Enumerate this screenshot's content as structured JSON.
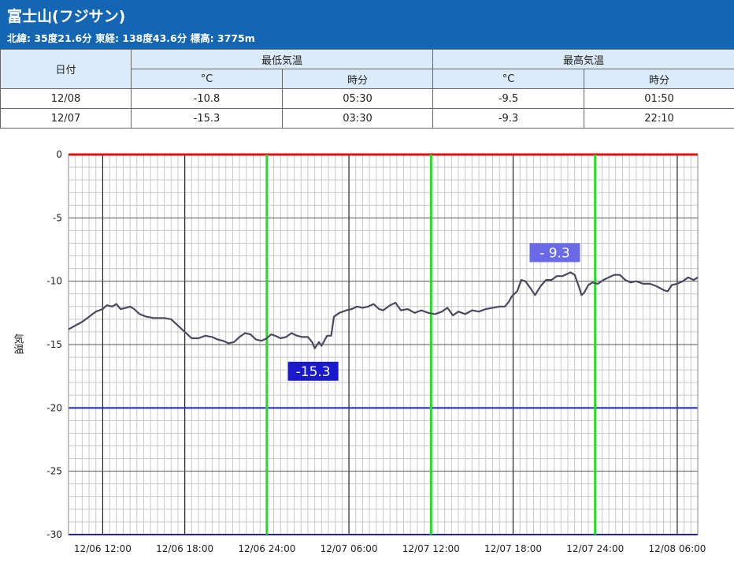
{
  "header": {
    "title": "富士山(フジサン)",
    "subtitle": "北緯: 35度21.6分 東経: 138度43.6分 標高: 3775m",
    "bg_color": "#1466b3"
  },
  "stats_table": {
    "date_header": "日付",
    "min_header": "最低気温",
    "max_header": "最高気温",
    "unit_label": "°C",
    "time_label": "時分",
    "rows": [
      {
        "date": "12/08",
        "min_c": "-10.8",
        "min_time": "05:30",
        "max_c": "-9.5",
        "max_time": "01:50"
      },
      {
        "date": "12/07",
        "min_c": "-15.3",
        "min_time": "03:30",
        "max_c": "-9.3",
        "max_time": "22:10"
      }
    ]
  },
  "chart_data": {
    "type": "line",
    "ylabel": "気温",
    "ylim": [
      -30,
      0
    ],
    "yticks": [
      "0",
      "-5",
      "-10",
      "-15",
      "-20",
      "-25",
      "-30"
    ],
    "ytick_values": [
      0,
      -5,
      -10,
      -15,
      -20,
      -25,
      -30
    ],
    "xlim_hours": [
      -14.5,
      31.5
    ],
    "x_units": "hours from 12/07 00:00",
    "xticks": [
      {
        "label": "12/06 12:00",
        "hour": -12
      },
      {
        "label": "12/06 18:00",
        "hour": -6
      },
      {
        "label": "12/06 24:00",
        "hour": 0
      },
      {
        "label": "12/07 06:00",
        "hour": 6
      },
      {
        "label": "12/07 12:00",
        "hour": 12
      },
      {
        "label": "12/07 18:00",
        "hour": 18
      },
      {
        "label": "12/07 24:00",
        "hour": 24
      },
      {
        "label": "12/08 06:00",
        "hour": 30
      }
    ],
    "reference_lines": {
      "red": 0,
      "blue": [
        -20,
        -30
      ]
    },
    "day_lines_hours": [
      0,
      12,
      24
    ],
    "colors": {
      "line": "#4a4a5e",
      "day_line": "#22dd22",
      "red_ref": "#dd1111",
      "blue_ref": "#2222bb",
      "label_min_bg": "#1a1acc",
      "label_max_bg": "#6a6ae8"
    },
    "annotations": [
      {
        "text": "-15.3",
        "type": "min"
      },
      {
        "text": "- 9.3",
        "type": "max"
      }
    ],
    "series": [
      {
        "points": [
          [
            -14.5,
            -13.8
          ],
          [
            -14.0,
            -13.5
          ],
          [
            -13.5,
            -13.2
          ],
          [
            -13.0,
            -12.8
          ],
          [
            -12.5,
            -12.4
          ],
          [
            -12.0,
            -12.2
          ],
          [
            -11.7,
            -11.9
          ],
          [
            -11.3,
            -12.0
          ],
          [
            -11.0,
            -11.8
          ],
          [
            -10.7,
            -12.2
          ],
          [
            -10.3,
            -12.1
          ],
          [
            -10.0,
            -12.0
          ],
          [
            -9.7,
            -12.2
          ],
          [
            -9.3,
            -12.6
          ],
          [
            -8.8,
            -12.8
          ],
          [
            -8.3,
            -12.9
          ],
          [
            -7.5,
            -12.9
          ],
          [
            -7.0,
            -13.0
          ],
          [
            -6.6,
            -13.4
          ],
          [
            -6.0,
            -14.0
          ],
          [
            -5.5,
            -14.5
          ],
          [
            -5.0,
            -14.5
          ],
          [
            -4.5,
            -14.3
          ],
          [
            -4.0,
            -14.4
          ],
          [
            -3.6,
            -14.6
          ],
          [
            -3.2,
            -14.7
          ],
          [
            -2.8,
            -14.9
          ],
          [
            -2.4,
            -14.8
          ],
          [
            -2.0,
            -14.4
          ],
          [
            -1.6,
            -14.1
          ],
          [
            -1.2,
            -14.2
          ],
          [
            -0.8,
            -14.6
          ],
          [
            -0.4,
            -14.7
          ],
          [
            0.0,
            -14.5
          ],
          [
            0.3,
            -14.2
          ],
          [
            0.6,
            -14.3
          ],
          [
            1.0,
            -14.5
          ],
          [
            1.4,
            -14.4
          ],
          [
            1.8,
            -14.1
          ],
          [
            2.2,
            -14.3
          ],
          [
            2.6,
            -14.4
          ],
          [
            3.0,
            -14.4
          ],
          [
            3.3,
            -14.8
          ],
          [
            3.5,
            -15.3
          ],
          [
            3.8,
            -14.8
          ],
          [
            4.0,
            -15.1
          ],
          [
            4.4,
            -14.3
          ],
          [
            4.7,
            -14.3
          ],
          [
            4.9,
            -12.8
          ],
          [
            5.3,
            -12.5
          ],
          [
            5.8,
            -12.3
          ],
          [
            6.2,
            -12.2
          ],
          [
            6.6,
            -12.0
          ],
          [
            7.0,
            -12.1
          ],
          [
            7.4,
            -12.0
          ],
          [
            7.8,
            -11.8
          ],
          [
            8.2,
            -12.2
          ],
          [
            8.5,
            -12.3
          ],
          [
            9.0,
            -11.9
          ],
          [
            9.4,
            -11.7
          ],
          [
            9.8,
            -12.3
          ],
          [
            10.3,
            -12.2
          ],
          [
            10.8,
            -12.5
          ],
          [
            11.3,
            -12.3
          ],
          [
            11.8,
            -12.5
          ],
          [
            12.3,
            -12.6
          ],
          [
            12.8,
            -12.4
          ],
          [
            13.2,
            -12.1
          ],
          [
            13.6,
            -12.7
          ],
          [
            14.0,
            -12.4
          ],
          [
            14.5,
            -12.6
          ],
          [
            15.0,
            -12.3
          ],
          [
            15.5,
            -12.4
          ],
          [
            16.0,
            -12.2
          ],
          [
            16.5,
            -12.1
          ],
          [
            17.0,
            -12.0
          ],
          [
            17.4,
            -12.0
          ],
          [
            17.7,
            -11.6
          ],
          [
            17.9,
            -11.2
          ],
          [
            18.3,
            -10.8
          ],
          [
            18.6,
            -9.9
          ],
          [
            18.9,
            -10.0
          ],
          [
            19.3,
            -10.6
          ],
          [
            19.6,
            -11.1
          ],
          [
            20.0,
            -10.4
          ],
          [
            20.4,
            -9.9
          ],
          [
            20.8,
            -9.9
          ],
          [
            21.2,
            -9.6
          ],
          [
            21.6,
            -9.6
          ],
          [
            22.0,
            -9.4
          ],
          [
            22.2,
            -9.3
          ],
          [
            22.5,
            -9.5
          ],
          [
            22.8,
            -10.4
          ],
          [
            23.0,
            -11.1
          ],
          [
            23.2,
            -10.9
          ],
          [
            23.5,
            -10.3
          ],
          [
            23.8,
            -10.1
          ],
          [
            24.2,
            -10.2
          ],
          [
            24.6,
            -9.9
          ],
          [
            25.0,
            -9.7
          ],
          [
            25.4,
            -9.5
          ],
          [
            25.8,
            -9.5
          ],
          [
            26.2,
            -9.9
          ],
          [
            26.6,
            -10.1
          ],
          [
            27.0,
            -10.0
          ],
          [
            27.5,
            -10.2
          ],
          [
            28.0,
            -10.2
          ],
          [
            28.5,
            -10.4
          ],
          [
            29.0,
            -10.7
          ],
          [
            29.3,
            -10.8
          ],
          [
            29.6,
            -10.3
          ],
          [
            30.0,
            -10.2
          ],
          [
            30.4,
            -10.0
          ],
          [
            30.8,
            -9.7
          ],
          [
            31.2,
            -9.9
          ],
          [
            31.5,
            -9.7
          ]
        ]
      }
    ]
  }
}
